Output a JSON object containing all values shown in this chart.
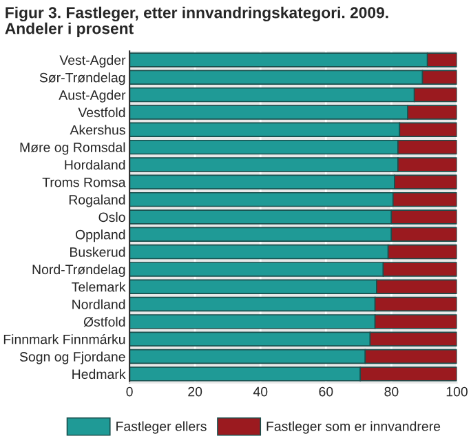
{
  "chart_data": {
    "type": "bar",
    "orientation": "horizontal",
    "stacked": true,
    "title": "Figur 3. Fastleger, etter innvandringskategori. 2009.\nAndeler i prosent",
    "categories": [
      "Vest-Agder",
      "Sør-Trøndelag",
      "Aust-Agder",
      "Vestfold",
      "Akershus",
      "Møre og Romsdal",
      "Hordaland",
      "Troms Romsa",
      "Rogaland",
      "Oslo",
      "Oppland",
      "Buskerud",
      "Nord-Trøndelag",
      "Telemark",
      "Nordland",
      "Østfold",
      "Finnmark Finnmárku",
      "Sogn og Fjordane",
      "Hedmark"
    ],
    "series": [
      {
        "name": "Fastleger ellers",
        "color": "#1f9a96",
        "values": [
          91,
          89.5,
          87,
          85,
          82.5,
          82,
          82,
          81,
          80.5,
          80,
          80,
          79,
          77.5,
          75.5,
          75,
          75,
          73.5,
          72,
          70.5
        ]
      },
      {
        "name": "Fastleger som er innvandrere",
        "color": "#9b1a1f",
        "values": [
          9,
          10.5,
          13,
          15,
          17.5,
          18,
          18,
          19,
          19.5,
          20,
          20,
          21,
          22.5,
          24.5,
          25,
          25,
          26.5,
          28,
          29.5
        ]
      }
    ],
    "xlim": [
      0,
      100
    ],
    "xticks": [
      0,
      20,
      40,
      60,
      80,
      100
    ],
    "grid": "x",
    "legend": "bottom"
  }
}
